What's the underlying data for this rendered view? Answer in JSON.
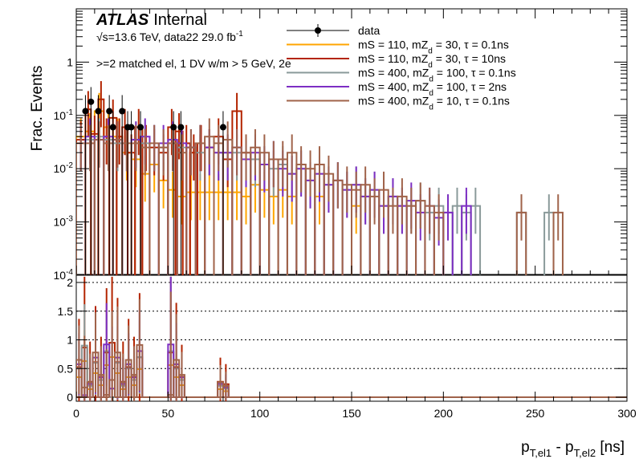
{
  "chart_data": {
    "type": "histogram",
    "title": "",
    "xlabel": "p_{T,el1} - p_{T,el2} [ns]",
    "xlabel_parts": {
      "p1": "p",
      "s1": "T,el1",
      "mid": " - p",
      "s2": "T,el2",
      "unit": " [ns]"
    },
    "ylabel": "Frac. Events",
    "xlim": [
      0,
      300
    ],
    "upper": {
      "yscale": "log",
      "ylim": [
        0.0001,
        10
      ],
      "y_ticks": [
        {
          "v": 0.0001,
          "m": "10",
          "e": "-4"
        },
        {
          "v": 0.001,
          "m": "10",
          "e": "-3"
        },
        {
          "v": 0.01,
          "m": "10",
          "e": "-2"
        },
        {
          "v": 0.1,
          "m": "10",
          "e": "-1"
        },
        {
          "v": 1,
          "m": "1",
          "e": ""
        }
      ]
    },
    "lower": {
      "ylim": [
        0,
        2
      ],
      "y_ticks": [
        "0",
        "0.5",
        "1",
        "1.5",
        "2"
      ],
      "gridlines": [
        0.5,
        1,
        1.5,
        2
      ]
    },
    "x_ticks": [
      "0",
      "50",
      "100",
      "150",
      "200",
      "250",
      "300"
    ],
    "annotations": {
      "atlas": "ATLAS",
      "internal": "Internal",
      "energy_prefix": "√s=13.6 TeV, data22 29.0 fb",
      "energy_exp": "-1",
      "selection": ">=2 matched el, 1 DV w/m > 5 GeV, 2e"
    },
    "series": [
      {
        "name": "data",
        "label": "data",
        "kind": "points",
        "color": "#000000",
        "x": [
          5,
          8,
          12,
          18,
          20,
          25,
          28,
          30,
          35,
          53,
          57,
          80
        ],
        "y": [
          0.12,
          0.18,
          0.12,
          0.12,
          0.06,
          0.12,
          0.06,
          0.06,
          0.06,
          0.06,
          0.06,
          0.06
        ],
        "err_up": [
          0.12,
          0.16,
          0.12,
          0.12,
          0.06,
          0.12,
          0.06,
          0.06,
          0.06,
          0.06,
          0.06,
          0.06
        ]
      },
      {
        "name": "s1",
        "label_parts": [
          "mS = 110, mZ",
          "d",
          " = 30, τ = 0.1ns"
        ],
        "kind": "hist",
        "color": "#ffa500",
        "bins": [
          [
            0,
            5,
            0.04
          ],
          [
            5,
            10,
            0.05
          ],
          [
            10,
            15,
            0.12
          ],
          [
            15,
            20,
            0.06
          ],
          [
            20,
            25,
            0.04
          ],
          [
            25,
            30,
            0.02
          ],
          [
            30,
            35,
            0.015
          ],
          [
            35,
            40,
            0.008
          ],
          [
            40,
            45,
            0.012
          ],
          [
            45,
            50,
            0.006
          ],
          [
            50,
            55,
            0.004
          ],
          [
            55,
            60,
            0.003
          ],
          [
            60,
            65,
            0.0036
          ],
          [
            65,
            70,
            0.0036
          ],
          [
            70,
            75,
            0.0036
          ],
          [
            75,
            80,
            0.0036
          ],
          [
            80,
            85,
            0.0036
          ],
          [
            85,
            90,
            0.0036
          ],
          [
            90,
            95,
            0.003
          ],
          [
            95,
            100,
            0.005
          ],
          [
            100,
            105,
            0.004
          ],
          [
            105,
            110,
            0.003
          ],
          [
            110,
            115,
            0.004
          ],
          [
            115,
            120,
            0.003
          ],
          [
            130,
            135,
            0.003
          ],
          [
            150,
            155,
            0.002
          ]
        ]
      },
      {
        "name": "s2",
        "label_parts": [
          "mS = 110, mZ",
          "d",
          " = 30, τ = 10ns"
        ],
        "kind": "hist",
        "color": "#b32400",
        "bins": [
          [
            0,
            5,
            0.035
          ],
          [
            5,
            8,
            0.13
          ],
          [
            8,
            12,
            0.045
          ],
          [
            12,
            15,
            0.2
          ],
          [
            15,
            18,
            0.04
          ],
          [
            18,
            22,
            0.09
          ],
          [
            22,
            25,
            0.04
          ],
          [
            25,
            28,
            0.06
          ],
          [
            28,
            32,
            0.02
          ],
          [
            32,
            36,
            0.06
          ],
          [
            36,
            40,
            0.03
          ],
          [
            40,
            45,
            0.025
          ],
          [
            45,
            50,
            0.02
          ],
          [
            50,
            54,
            0.06
          ],
          [
            54,
            58,
            0.05
          ],
          [
            58,
            62,
            0.03
          ],
          [
            62,
            66,
            0.02
          ],
          [
            66,
            70,
            0.03
          ],
          [
            70,
            75,
            0.025
          ],
          [
            75,
            80,
            0.04
          ],
          [
            80,
            85,
            0.015
          ],
          [
            85,
            90,
            0.12
          ],
          [
            90,
            95,
            0.02
          ]
        ]
      },
      {
        "name": "s3",
        "label_parts": [
          "mS = 400, mZ",
          "d",
          " = 100, τ = 0.1ns"
        ],
        "kind": "hist",
        "color": "#8a9a9a",
        "bins": [
          [
            0,
            5,
            0.03
          ],
          [
            5,
            10,
            0.035
          ],
          [
            10,
            15,
            0.04
          ],
          [
            15,
            20,
            0.035
          ],
          [
            20,
            25,
            0.03
          ],
          [
            25,
            30,
            0.03
          ],
          [
            30,
            35,
            0.035
          ],
          [
            35,
            40,
            0.03
          ],
          [
            40,
            45,
            0.03
          ],
          [
            45,
            50,
            0.025
          ],
          [
            50,
            55,
            0.03
          ],
          [
            55,
            60,
            0.025
          ],
          [
            60,
            65,
            0.025
          ],
          [
            65,
            70,
            0.02
          ],
          [
            70,
            75,
            0.025
          ],
          [
            75,
            80,
            0.02
          ],
          [
            80,
            85,
            0.02
          ],
          [
            85,
            90,
            0.02
          ],
          [
            90,
            95,
            0.015
          ],
          [
            95,
            100,
            0.015
          ],
          [
            100,
            105,
            0.012
          ],
          [
            105,
            110,
            0.01
          ],
          [
            110,
            115,
            0.012
          ],
          [
            115,
            120,
            0.008
          ],
          [
            120,
            125,
            0.01
          ],
          [
            125,
            130,
            0.006
          ],
          [
            130,
            135,
            0.008
          ],
          [
            135,
            140,
            0.005
          ],
          [
            140,
            145,
            0.006
          ],
          [
            145,
            150,
            0.004
          ],
          [
            150,
            155,
            0.005
          ],
          [
            155,
            160,
            0.003
          ],
          [
            160,
            165,
            0.004
          ],
          [
            165,
            170,
            0.002
          ],
          [
            170,
            175,
            0.003
          ],
          [
            175,
            180,
            0.002
          ],
          [
            180,
            185,
            0.002
          ],
          [
            185,
            190,
            0.0025
          ],
          [
            190,
            195,
            0.0015
          ],
          [
            195,
            200,
            0.002
          ],
          [
            200,
            205,
            0.0015
          ],
          [
            205,
            210,
            0.002
          ],
          [
            210,
            215,
            0.0015
          ],
          [
            215,
            220,
            0.002
          ],
          [
            240,
            245,
            0.0015
          ],
          [
            255,
            260,
            0.0015
          ]
        ]
      },
      {
        "name": "s4",
        "label_parts": [
          "mS = 400, mZ",
          "d",
          " = 100, τ = 2ns"
        ],
        "kind": "hist",
        "color": "#7d2ec4",
        "bins": [
          [
            0,
            5,
            0.03
          ],
          [
            5,
            10,
            0.04
          ],
          [
            10,
            15,
            0.035
          ],
          [
            15,
            20,
            0.04
          ],
          [
            20,
            25,
            0.035
          ],
          [
            25,
            30,
            0.03
          ],
          [
            30,
            35,
            0.035
          ],
          [
            35,
            40,
            0.04
          ],
          [
            40,
            45,
            0.03
          ],
          [
            45,
            50,
            0.03
          ],
          [
            50,
            55,
            0.035
          ],
          [
            55,
            60,
            0.03
          ],
          [
            60,
            65,
            0.025
          ],
          [
            65,
            70,
            0.03
          ],
          [
            70,
            75,
            0.025
          ],
          [
            75,
            80,
            0.02
          ],
          [
            80,
            85,
            0.02
          ],
          [
            85,
            90,
            0.025
          ],
          [
            90,
            95,
            0.015
          ],
          [
            95,
            100,
            0.02
          ],
          [
            100,
            105,
            0.012
          ],
          [
            105,
            110,
            0.015
          ],
          [
            110,
            115,
            0.01
          ],
          [
            115,
            120,
            0.008
          ],
          [
            120,
            125,
            0.01
          ],
          [
            125,
            130,
            0.006
          ],
          [
            130,
            135,
            0.008
          ],
          [
            135,
            140,
            0.005
          ],
          [
            140,
            145,
            0.006
          ],
          [
            145,
            150,
            0.004
          ],
          [
            150,
            155,
            0.005
          ],
          [
            155,
            160,
            0.003
          ],
          [
            160,
            165,
            0.004
          ],
          [
            165,
            170,
            0.002
          ],
          [
            170,
            175,
            0.003
          ],
          [
            175,
            180,
            0.002
          ],
          [
            180,
            185,
            0.0025
          ],
          [
            185,
            190,
            0.0015
          ],
          [
            190,
            195,
            0.002
          ],
          [
            195,
            200,
            0.0012
          ],
          [
            200,
            205,
            0.0015
          ],
          [
            210,
            215,
            0.002
          ]
        ]
      },
      {
        "name": "s5",
        "label_parts": [
          "mS = 400, mZ",
          "d",
          " = 10, τ = 0.1ns"
        ],
        "kind": "hist",
        "color": "#a0634a",
        "bins": [
          [
            0,
            5,
            0.03
          ],
          [
            5,
            10,
            0.03
          ],
          [
            10,
            15,
            0.035
          ],
          [
            15,
            20,
            0.03
          ],
          [
            20,
            25,
            0.035
          ],
          [
            25,
            30,
            0.03
          ],
          [
            30,
            35,
            0.03
          ],
          [
            35,
            40,
            0.025
          ],
          [
            40,
            45,
            0.03
          ],
          [
            45,
            50,
            0.025
          ],
          [
            50,
            55,
            0.03
          ],
          [
            55,
            60,
            0.02
          ],
          [
            60,
            65,
            0.025
          ],
          [
            65,
            70,
            0.03
          ],
          [
            70,
            75,
            0.04
          ],
          [
            75,
            80,
            0.03
          ],
          [
            80,
            85,
            0.035
          ],
          [
            85,
            90,
            0.025
          ],
          [
            90,
            95,
            0.02
          ],
          [
            95,
            100,
            0.025
          ],
          [
            100,
            105,
            0.02
          ],
          [
            105,
            110,
            0.015
          ],
          [
            110,
            115,
            0.015
          ],
          [
            115,
            120,
            0.02
          ],
          [
            120,
            125,
            0.012
          ],
          [
            125,
            130,
            0.01
          ],
          [
            130,
            135,
            0.012
          ],
          [
            135,
            140,
            0.008
          ],
          [
            140,
            145,
            0.006
          ],
          [
            145,
            150,
            0.005
          ],
          [
            150,
            155,
            0.004
          ],
          [
            155,
            160,
            0.005
          ],
          [
            160,
            165,
            0.003
          ],
          [
            165,
            170,
            0.004
          ],
          [
            170,
            175,
            0.002
          ],
          [
            175,
            180,
            0.003
          ],
          [
            180,
            185,
            0.002
          ],
          [
            185,
            190,
            0.0025
          ],
          [
            190,
            195,
            0.002
          ],
          [
            195,
            200,
            0.0015
          ],
          [
            240,
            245,
            0.0015
          ],
          [
            260,
            265,
            0.0015
          ]
        ]
      }
    ],
    "ratio": {
      "x_bins": [
        [
          0,
          3
        ],
        [
          3,
          6
        ],
        [
          6,
          9
        ],
        [
          9,
          12
        ],
        [
          12,
          15
        ],
        [
          15,
          18
        ],
        [
          18,
          21
        ],
        [
          21,
          24
        ],
        [
          24,
          27
        ],
        [
          27,
          30
        ],
        [
          30,
          33
        ],
        [
          33,
          36
        ],
        [
          50,
          53
        ],
        [
          53,
          56
        ],
        [
          56,
          59
        ],
        [
          77,
          80
        ],
        [
          80,
          83
        ]
      ],
      "value": [
        0.5,
        0.9,
        0.2,
        0.6,
        0.3,
        0.8,
        1.0,
        0.6,
        0.2,
        0.5,
        0.3,
        0.7,
        0.8,
        0.5,
        0.3,
        0.2,
        0.15
      ],
      "err": [
        0.6,
        0.9,
        0.5,
        0.7,
        0.5,
        0.8,
        1.2,
        0.8,
        0.5,
        0.6,
        0.5,
        0.8,
        1.8,
        0.8,
        0.4,
        0.3,
        0.25
      ]
    }
  }
}
